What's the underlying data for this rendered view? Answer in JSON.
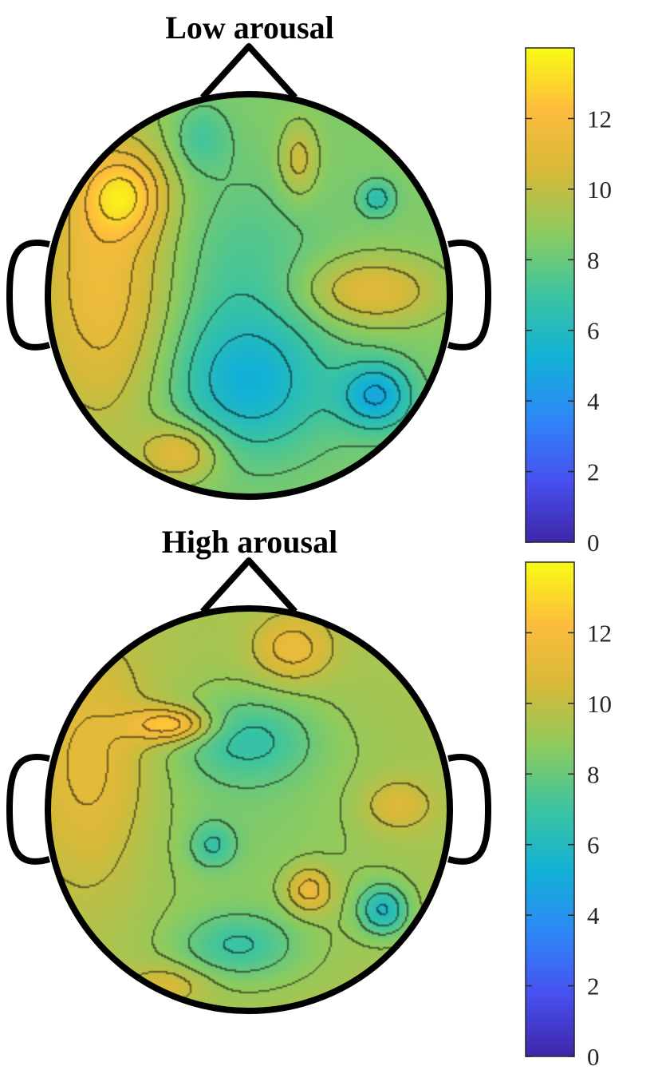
{
  "chart_data": [
    {
      "type": "heatmap",
      "title": "Low arousal",
      "colorbar": {
        "min": 0,
        "max": 14,
        "ticks": [
          0,
          2,
          4,
          6,
          8,
          10,
          12
        ]
      },
      "colormap": [
        "#3e26a8",
        "#4750f0",
        "#2e87f7",
        "#12b1d6",
        "#3cc4a0",
        "#8ccb5f",
        "#d6b939",
        "#fdbc3d",
        "#f9fb15"
      ],
      "background_level": 8.5,
      "blobs": [
        {
          "region": "left temporal",
          "cx": -0.72,
          "cy": -0.08,
          "sx": 0.25,
          "sy": 0.55,
          "amp": 3.2
        },
        {
          "region": "left frontal",
          "cx": -0.62,
          "cy": -0.5,
          "sx": 0.14,
          "sy": 0.14,
          "amp": 3.0
        },
        {
          "region": "left occipital",
          "cx": -0.33,
          "cy": 0.78,
          "sx": 0.14,
          "sy": 0.1,
          "amp": 2.6
        },
        {
          "region": "right temporal",
          "cx": 0.6,
          "cy": -0.02,
          "sx": 0.24,
          "sy": 0.12,
          "amp": 2.6
        },
        {
          "region": "frontal midline",
          "cx": 0.25,
          "cy": -0.67,
          "sx": 0.07,
          "sy": 0.13,
          "amp": 2.0
        },
        {
          "region": "left frontopolar",
          "cx": -0.24,
          "cy": -0.78,
          "sx": 0.1,
          "sy": 0.12,
          "amp": -1.4
        },
        {
          "region": "center",
          "cx": -0.05,
          "cy": -0.1,
          "sx": 0.3,
          "sy": 0.35,
          "amp": -1.2
        },
        {
          "region": "posterior center",
          "cx": 0.0,
          "cy": 0.45,
          "sx": 0.28,
          "sy": 0.24,
          "amp": -3.0
        },
        {
          "region": "right parietal",
          "cx": 0.64,
          "cy": 0.5,
          "sx": 0.13,
          "sy": 0.12,
          "amp": -3.5
        },
        {
          "region": "right frontal",
          "cx": 0.64,
          "cy": -0.48,
          "sx": 0.06,
          "sy": 0.06,
          "amp": -2.0
        }
      ]
    },
    {
      "type": "heatmap",
      "title": "High arousal",
      "colorbar": {
        "min": 0,
        "max": 14,
        "ticks": [
          0,
          2,
          4,
          6,
          8,
          10,
          12
        ]
      },
      "colormap": [
        "#3e26a8",
        "#4750f0",
        "#2e87f7",
        "#12b1d6",
        "#3cc4a0",
        "#8ccb5f",
        "#d6b939",
        "#fdbc3d",
        "#f9fb15"
      ],
      "background_level": 9.4,
      "blobs": [
        {
          "region": "left temporal",
          "cx": -0.78,
          "cy": -0.2,
          "sx": 0.22,
          "sy": 0.42,
          "amp": 2.0
        },
        {
          "region": "left frontal",
          "cx": -0.38,
          "cy": -0.42,
          "sx": 0.14,
          "sy": 0.06,
          "amp": 3.6
        },
        {
          "region": "frontal midline",
          "cx": 0.22,
          "cy": -0.8,
          "sx": 0.13,
          "sy": 0.11,
          "amp": 2.2
        },
        {
          "region": "right temporal",
          "cx": 0.74,
          "cy": -0.02,
          "sx": 0.12,
          "sy": 0.09,
          "amp": 1.6
        },
        {
          "region": "right parietal midline",
          "cx": 0.3,
          "cy": 0.4,
          "sx": 0.08,
          "sy": 0.08,
          "amp": 2.5
        },
        {
          "region": "left occipital",
          "cx": -0.4,
          "cy": 0.87,
          "sx": 0.14,
          "sy": 0.07,
          "amp": 1.4
        },
        {
          "region": "frontocentral",
          "cx": 0.0,
          "cy": -0.35,
          "sx": 0.24,
          "sy": 0.15,
          "amp": -2.2
        },
        {
          "region": "center",
          "cx": -0.05,
          "cy": 0.05,
          "sx": 0.45,
          "sy": 0.38,
          "amp": -0.9
        },
        {
          "region": "left central",
          "cx": -0.18,
          "cy": 0.18,
          "sx": 0.08,
          "sy": 0.08,
          "amp": -1.8
        },
        {
          "region": "posterior center",
          "cx": -0.05,
          "cy": 0.68,
          "sx": 0.22,
          "sy": 0.12,
          "amp": -2.3
        },
        {
          "region": "right parietal",
          "cx": 0.67,
          "cy": 0.5,
          "sx": 0.09,
          "sy": 0.09,
          "amp": -3.4
        }
      ]
    }
  ]
}
